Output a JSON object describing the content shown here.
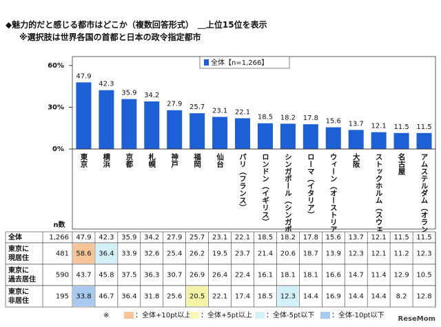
{
  "chart_data": {
    "type": "bar",
    "title": [
      "◆魅力的だと感じる都市はどこか（複数回答形式）　＿上位15位を表示",
      "※選択肢は世界各国の首都と日本の政令指定都市"
    ],
    "categories": [
      "東京",
      "横浜",
      "京都",
      "札幌",
      "神戸",
      "福岡",
      "仙台",
      "パリ（フランス）",
      "ロンドン（イギリス）",
      "シンガポール（シンガポール）",
      "ローマ（イタリア）",
      "ウィーン（オーストリア）",
      "大阪",
      "ストックホルム（スウェーデン）",
      "名古屋",
      "アムステルダム（オランダ）"
    ],
    "series": [
      {
        "name": "全体【n=1,266】",
        "color": "#1d5fd4",
        "values": [
          47.9,
          42.3,
          35.9,
          34.2,
          27.9,
          25.7,
          23.1,
          22.1,
          18.5,
          18.2,
          17.8,
          15.6,
          13.7,
          12.1,
          11.5,
          11.5
        ]
      }
    ],
    "ylim": [
      0,
      60
    ],
    "yticks": [
      {
        "value": 0,
        "label": "0%"
      },
      {
        "value": 30,
        "label": "30%"
      },
      {
        "value": 60,
        "label": "60%"
      }
    ]
  },
  "table": {
    "n_header": "n数",
    "total_label": "全体",
    "total_n": "1,266",
    "rows": [
      {
        "label": [
          "東京に",
          "現居住"
        ],
        "n": "481",
        "values": [
          58.6,
          36.4,
          33.9,
          32.6,
          25.4,
          26.2,
          19.5,
          23.7,
          21.4,
          20.6,
          18.7,
          13.9,
          12.3,
          12.1,
          11.2,
          12.3
        ],
        "highlights": [
          "#f8c598",
          "#d3f1f8",
          null,
          null,
          null,
          null,
          null,
          null,
          null,
          null,
          null,
          null,
          null,
          null,
          null,
          null
        ]
      },
      {
        "label": [
          "東京に",
          "過去居住"
        ],
        "n": "590",
        "values": [
          43.7,
          45.8,
          37.5,
          36.3,
          30.7,
          26.9,
          26.4,
          22.4,
          16.1,
          18.1,
          18.1,
          16.6,
          14.7,
          11.4,
          12.9,
          10.5
        ],
        "highlights": [
          null,
          null,
          null,
          null,
          null,
          null,
          null,
          null,
          null,
          null,
          null,
          null,
          null,
          null,
          null,
          null
        ]
      },
      {
        "label": [
          "東京に",
          "非居住"
        ],
        "n": "195",
        "values": [
          33.8,
          46.7,
          36.4,
          31.8,
          25.6,
          20.5,
          22.1,
          17.4,
          18.5,
          12.3,
          14.4,
          16.9,
          14.4,
          14.4,
          8.2,
          12.8
        ],
        "highlights": [
          "#a8c9f0",
          null,
          null,
          null,
          null,
          "#f4f3a6",
          null,
          null,
          null,
          "#d3f1f8",
          null,
          null,
          null,
          null,
          null,
          null
        ]
      }
    ]
  },
  "footnote": {
    "mark": "※",
    "items": [
      {
        "label": "：全体+10pt以上",
        "color": "#f8c598"
      },
      {
        "label": "：全体+5pt以上",
        "color": "#fbf7b4"
      },
      {
        "label": "：全体-5pt以下",
        "color": "#d3f1f8"
      },
      {
        "label": "：全体-10pt以下",
        "color": "#a8c9f0"
      }
    ]
  },
  "watermark": "ReseMom"
}
